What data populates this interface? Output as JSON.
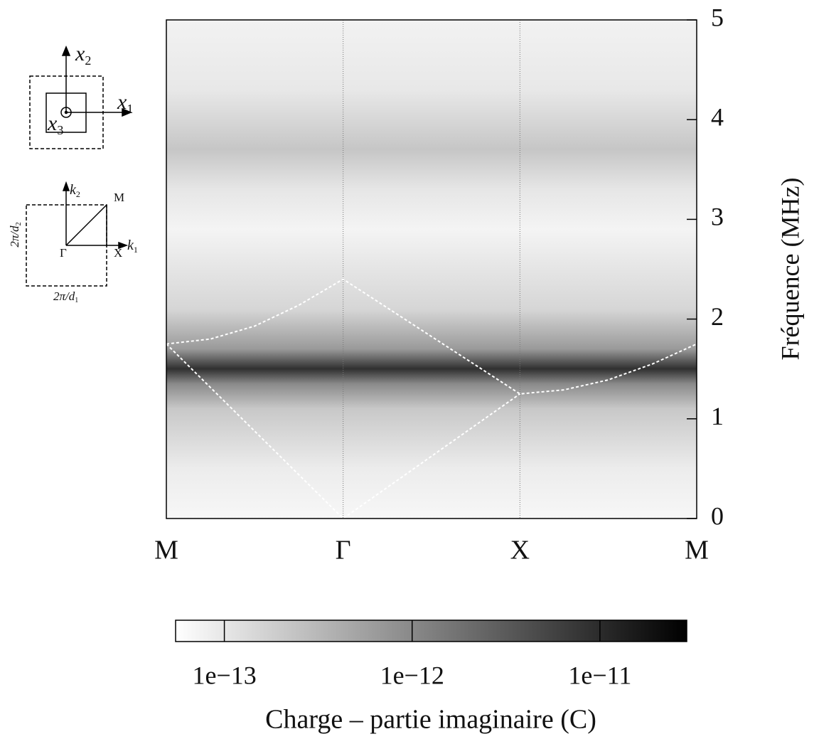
{
  "chart_data": {
    "type": "line",
    "y_label": "Fréquence (MHz)",
    "xlim": [
      0,
      3
    ],
    "xticks": [
      {
        "value": 0,
        "label": "M"
      },
      {
        "value": 1,
        "label": "Γ"
      },
      {
        "value": 2,
        "label": "X"
      },
      {
        "value": 3,
        "label": "M"
      }
    ],
    "xgrid": true,
    "ylim": [
      0,
      5
    ],
    "yticks": [
      0,
      1,
      2,
      3,
      4,
      5
    ],
    "series": [
      {
        "color": "#ffffff",
        "x": [
          0,
          0.25,
          0.5,
          0.75,
          1,
          2,
          2.25,
          2.5,
          2.75,
          3
        ],
        "values": [
          1.75,
          1.8,
          1.93,
          2.14,
          2.4,
          1.25,
          1.29,
          1.39,
          1.55,
          1.75
        ]
      },
      {
        "color": "#ffffff",
        "x": [
          0,
          1,
          2
        ],
        "values": [
          1.75,
          0,
          1.25
        ]
      }
    ],
    "colorbar": {
      "title": "Charge – partie imaginaire (C)",
      "log": true,
      "clim": [
        5.5e-14,
        2.9e-11
      ],
      "ticks": [
        {
          "value": 1e-13,
          "label": "1e−13"
        },
        {
          "value": 1e-12,
          "label": "1e−12"
        },
        {
          "value": 1e-11,
          "label": "1e−11"
        }
      ]
    }
  },
  "inset_labels": [
    {
      "text": "x",
      "sub": "2"
    },
    {
      "text": "x",
      "sub": "1"
    },
    {
      "text": "x",
      "sub": "3"
    },
    {
      "text": "k",
      "sub": "2"
    },
    {
      "text": "M"
    },
    {
      "text": "k",
      "sub": "1"
    },
    {
      "text": "Γ"
    },
    {
      "text": "X"
    },
    {
      "text": "2π/d",
      "sub": "2"
    },
    {
      "text": "2π/d",
      "sub": "1"
    }
  ]
}
